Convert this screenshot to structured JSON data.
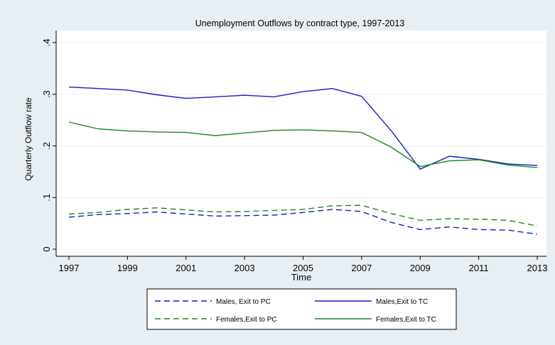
{
  "chart_data": {
    "type": "line",
    "title": "Unemployment Outflows by contract type, 1997-2013",
    "xlabel": "Time",
    "ylabel": "Quarterly Outflow rate",
    "xlim": [
      1997,
      2013
    ],
    "ylim": [
      0,
      0.4
    ],
    "x_ticks": [
      1997,
      1999,
      2001,
      2003,
      2005,
      2007,
      2009,
      2011,
      2013
    ],
    "y_ticks": [
      0,
      0.1,
      0.2,
      0.3,
      0.4
    ],
    "y_tick_labels": [
      "0",
      ".1",
      ".2",
      ".3",
      ".4"
    ],
    "grid": true,
    "legend_position": "bottom",
    "x": [
      1997,
      1998,
      1999,
      2000,
      2001,
      2002,
      2003,
      2004,
      2005,
      2006,
      2007,
      2008,
      2009,
      2010,
      2011,
      2012,
      2013
    ],
    "series": [
      {
        "name": "Males, Exit to PC",
        "color": "#1a1acc",
        "dash": "dashed",
        "values": [
          0.062,
          0.067,
          0.069,
          0.072,
          0.068,
          0.064,
          0.065,
          0.066,
          0.071,
          0.077,
          0.073,
          0.052,
          0.038,
          0.043,
          0.038,
          0.037,
          0.029
        ]
      },
      {
        "name": "Males,Exit to TC",
        "color": "#1a1acc",
        "dash": "solid",
        "values": [
          0.314,
          0.311,
          0.308,
          0.299,
          0.292,
          0.295,
          0.298,
          0.295,
          0.305,
          0.311,
          0.296,
          0.23,
          0.155,
          0.18,
          0.174,
          0.165,
          0.162
        ]
      },
      {
        "name": "Females,Exit to PC",
        "color": "#1a8a1a",
        "dash": "dashed",
        "values": [
          0.068,
          0.071,
          0.077,
          0.08,
          0.076,
          0.072,
          0.073,
          0.075,
          0.077,
          0.084,
          0.085,
          0.069,
          0.056,
          0.059,
          0.058,
          0.056,
          0.045
        ]
      },
      {
        "name": "Females,Exit to TC",
        "color": "#1a8a1a",
        "dash": "solid",
        "values": [
          0.246,
          0.233,
          0.229,
          0.227,
          0.226,
          0.22,
          0.225,
          0.23,
          0.231,
          0.229,
          0.226,
          0.198,
          0.16,
          0.171,
          0.173,
          0.163,
          0.158
        ]
      }
    ]
  }
}
